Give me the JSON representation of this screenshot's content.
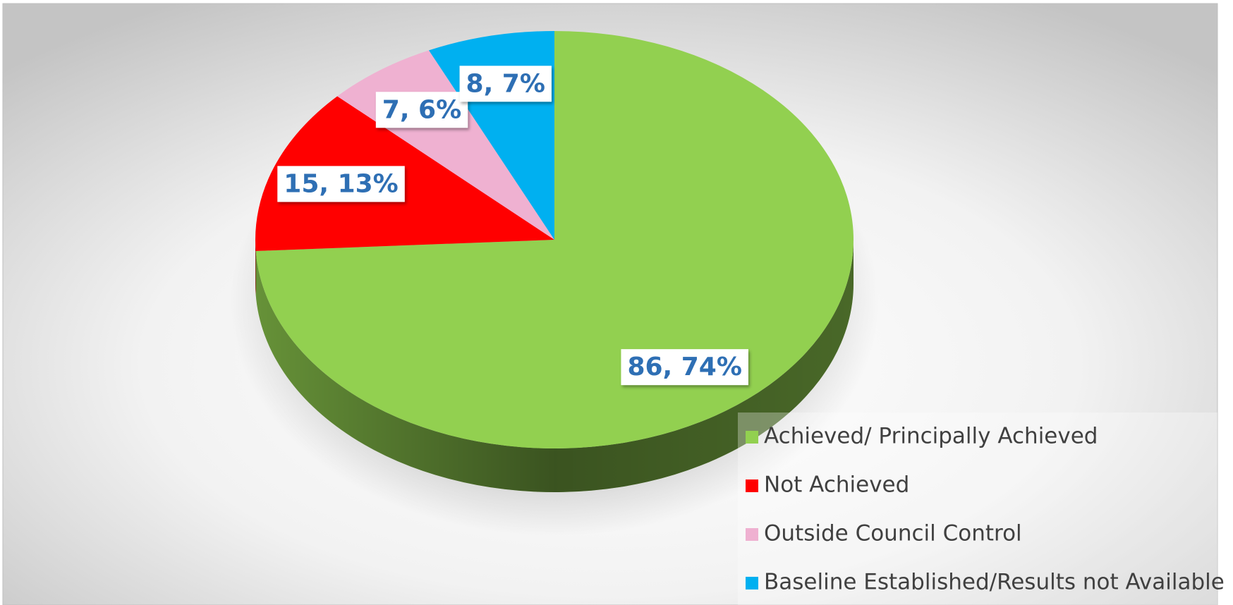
{
  "chart_data": {
    "type": "pie",
    "categories": [
      "Achieved/ Principally Achieved",
      "Not Achieved",
      "Outside Council Control",
      "Baseline Established/Results not Available"
    ],
    "values": [
      86,
      15,
      7,
      8
    ],
    "value_labels": [
      "86, 74%",
      "15, 13%",
      "7, 6%",
      "8, 7%"
    ],
    "colors": [
      "#92d050",
      "#ff0000",
      "#efb1d1",
      "#00b0f0"
    ],
    "legend": "bottom-right"
  }
}
